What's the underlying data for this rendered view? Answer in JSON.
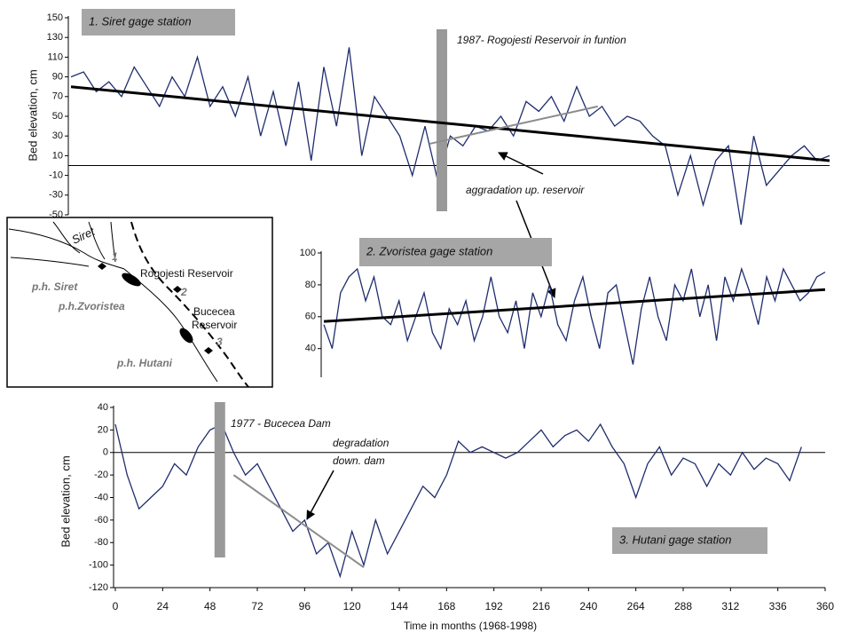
{
  "chart_data": [
    {
      "type": "line",
      "title": "1. Siret gage station",
      "y_label": "Bed elevation, cm",
      "annotations": [
        "1987- Rogojesti Reservoir in funtion",
        "aggradation up. reservoir"
      ],
      "event_x": 176,
      "x": [
        0,
        6,
        12,
        18,
        24,
        30,
        36,
        42,
        48,
        54,
        60,
        66,
        72,
        78,
        84,
        90,
        96,
        102,
        108,
        114,
        120,
        126,
        132,
        138,
        144,
        150,
        156,
        162,
        168,
        174,
        180,
        186,
        192,
        198,
        204,
        210,
        216,
        222,
        228,
        234,
        240,
        246,
        252,
        258,
        264,
        270,
        276,
        282,
        288,
        294,
        300,
        306,
        312,
        318,
        324,
        330,
        336,
        342,
        348,
        354,
        360
      ],
      "series": [
        {
          "color": "#1f2d6e",
          "values": [
            90,
            95,
            75,
            85,
            70,
            100,
            80,
            60,
            90,
            70,
            110,
            60,
            80,
            50,
            90,
            30,
            75,
            20,
            85,
            5,
            100,
            40,
            120,
            10,
            70,
            50,
            30,
            -10,
            40,
            -15,
            30,
            20,
            40,
            35,
            50,
            30,
            65,
            55,
            70,
            45,
            80,
            50,
            60,
            40,
            50,
            45,
            30,
            20,
            -30,
            10,
            -40,
            5,
            20,
            -60,
            30,
            -20,
            -5,
            10,
            20,
            5,
            10
          ]
        }
      ],
      "trends": [
        {
          "x": [
            0,
            360
          ],
          "values": [
            80,
            5
          ],
          "color": "#000000"
        },
        {
          "x": [
            170,
            250
          ],
          "values": [
            22,
            60
          ],
          "color": "#8c8c8c"
        }
      ],
      "xlim": [
        0,
        360
      ],
      "ylim": [
        -50,
        150
      ],
      "yticks": [
        -50,
        -30,
        -10,
        10,
        30,
        50,
        70,
        90,
        110,
        130,
        150
      ]
    },
    {
      "type": "line",
      "title": "2. Zvoristea gage station",
      "x": [
        0,
        6,
        12,
        18,
        24,
        30,
        36,
        42,
        48,
        54,
        60,
        66,
        72,
        78,
        84,
        90,
        96,
        102,
        108,
        114,
        120,
        126,
        132,
        138,
        144,
        150,
        156,
        162,
        168,
        174,
        180,
        186,
        192,
        198,
        204,
        210,
        216,
        222,
        228,
        234,
        240,
        246,
        252,
        258,
        264,
        270,
        276,
        282,
        288,
        294,
        300,
        306,
        312,
        318,
        324,
        330,
        336,
        342,
        348,
        354,
        360
      ],
      "series": [
        {
          "color": "#1f2d6e",
          "values": [
            55,
            40,
            75,
            85,
            90,
            70,
            85,
            60,
            55,
            70,
            45,
            60,
            75,
            50,
            40,
            65,
            55,
            70,
            45,
            60,
            85,
            60,
            50,
            70,
            40,
            75,
            60,
            80,
            55,
            45,
            70,
            85,
            60,
            40,
            75,
            80,
            55,
            30,
            65,
            85,
            60,
            45,
            80,
            70,
            90,
            60,
            80,
            45,
            85,
            70,
            90,
            75,
            55,
            85,
            70,
            90,
            80,
            70,
            75,
            85,
            88
          ]
        }
      ],
      "trends": [
        {
          "x": [
            0,
            360
          ],
          "values": [
            57,
            77
          ],
          "color": "#000000"
        }
      ],
      "xlim": [
        0,
        360
      ],
      "ylim": [
        22,
        100
      ],
      "yticks": [
        40,
        60,
        80,
        100
      ]
    },
    {
      "type": "line",
      "title": "3. Hutani gage station",
      "y_label": "Bed elevation, cm",
      "x_label": "Time in months (1968-1998)",
      "annotations": [
        "1977 - Bucecea Dam",
        "degradation",
        "down. dam"
      ],
      "event_x": 53,
      "x": [
        0,
        6,
        12,
        18,
        24,
        30,
        36,
        42,
        48,
        54,
        60,
        66,
        72,
        78,
        84,
        90,
        96,
        102,
        108,
        114,
        120,
        126,
        132,
        138,
        144,
        150,
        156,
        162,
        168,
        174,
        180,
        186,
        192,
        198,
        204,
        210,
        216,
        222,
        228,
        234,
        240,
        246,
        252,
        258,
        264,
        270,
        276,
        282,
        288,
        294,
        300,
        306,
        312,
        318,
        324,
        330,
        336,
        342,
        348
      ],
      "series": [
        {
          "color": "#1f2d6e",
          "values": [
            25,
            -20,
            -50,
            -40,
            -30,
            -10,
            -20,
            5,
            20,
            25,
            0,
            -20,
            -10,
            -30,
            -50,
            -70,
            -60,
            -90,
            -80,
            -110,
            -70,
            -100,
            -60,
            -90,
            -70,
            -50,
            -30,
            -40,
            -20,
            10,
            0,
            5,
            0,
            -5,
            0,
            10,
            20,
            5,
            15,
            20,
            10,
            25,
            5,
            -10,
            -40,
            -10,
            5,
            -20,
            -5,
            -10,
            -30,
            -10,
            -20,
            0,
            -15,
            -5,
            -10,
            -25,
            5
          ]
        }
      ],
      "trends": [
        {
          "x": [
            60,
            126
          ],
          "values": [
            -20,
            -102
          ],
          "color": "#8c8c8c"
        }
      ],
      "xlim": [
        0,
        360
      ],
      "ylim": [
        -120,
        40
      ],
      "yticks": [
        -120,
        -100,
        -80,
        -60,
        -40,
        -20,
        0,
        20,
        40
      ],
      "xticks": [
        0,
        24,
        48,
        72,
        96,
        120,
        144,
        168,
        192,
        216,
        240,
        264,
        288,
        312,
        336,
        360
      ]
    }
  ],
  "inset_map": {
    "labels": [
      "Siret",
      "1",
      "Rogojesti Reservoir",
      "2",
      "p.h. Siret",
      "p.h.Zvoristea",
      "Bucecea",
      "Reservoir",
      "3",
      "p.h. Hutani"
    ]
  }
}
